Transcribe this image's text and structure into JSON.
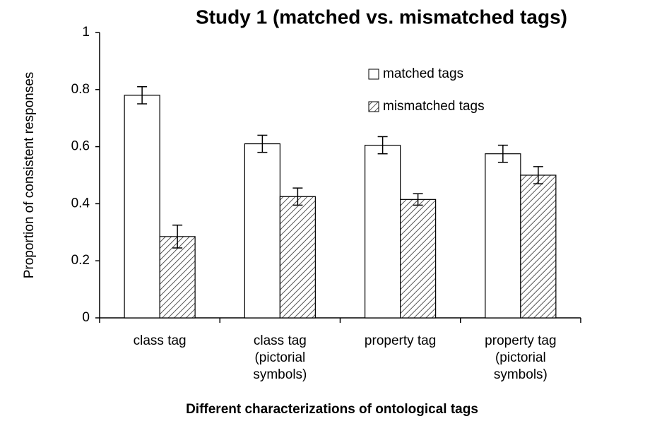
{
  "chart_data": {
    "type": "bar",
    "title": "Study 1 (matched vs. mismatched tags)",
    "xlabel": "Different characterizations of ontological tags",
    "ylabel": "Proportion of consistent responses",
    "categories": [
      [
        "class tag"
      ],
      [
        "class tag",
        "(pictorial",
        "symbols)"
      ],
      [
        "property tag"
      ],
      [
        "property tag",
        "(pictorial",
        "symbols)"
      ]
    ],
    "series": [
      {
        "name": "matched tags",
        "color": "#ffffff",
        "pattern": "none",
        "values": [
          0.78,
          0.61,
          0.605,
          0.575
        ],
        "errors": [
          0.03,
          0.03,
          0.03,
          0.03
        ]
      },
      {
        "name": "mismatched tags",
        "color": "#ffffff",
        "pattern": "diagonal",
        "values": [
          0.285,
          0.425,
          0.415,
          0.5
        ],
        "errors": [
          0.04,
          0.03,
          0.02,
          0.03
        ]
      }
    ],
    "ylim": [
      0,
      1
    ],
    "yticks": [
      0,
      0.2,
      0.4,
      0.6,
      0.8,
      1
    ],
    "legend": "upper right",
    "grid": false
  }
}
